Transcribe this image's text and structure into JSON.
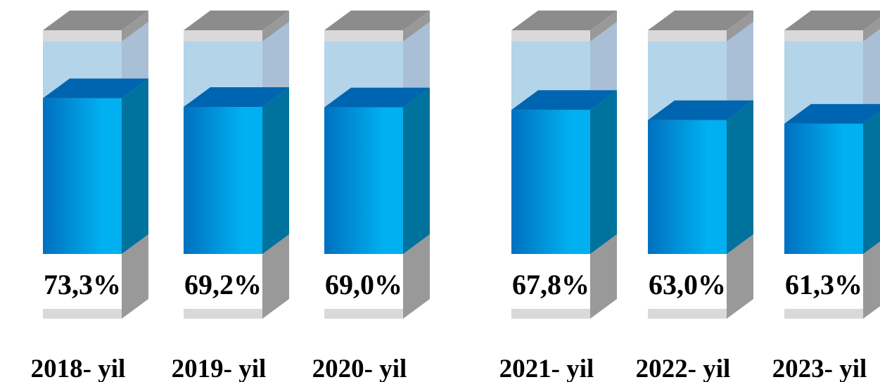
{
  "chart_data": {
    "type": "bar",
    "style": "3d-cylinder-column",
    "categories": [
      "2018- yil",
      "2019- yil",
      "2020- yil",
      "2021- yil",
      "2022- yil",
      "2023- yil"
    ],
    "values": [
      73.3,
      69.2,
      69.0,
      67.8,
      63.0,
      61.3
    ],
    "value_labels": [
      "73,3%",
      "69,2%",
      "69,0%",
      "67,8%",
      "63,0%",
      "61,3%"
    ],
    "unit": "%",
    "ylim": [
      0,
      100
    ],
    "grid": false,
    "legend": "none",
    "colors": {
      "fill_front_dark": "#0070C0",
      "fill_front_light": "#00B0F0",
      "fill_side": "#00729E",
      "fill_top": "#0065B0",
      "glass_front": "#B4D4EA",
      "glass_side": "#A9BFD5",
      "frame_light": "#D9D9D9",
      "frame_side": "#999999",
      "frame_top": "#8C8C8C"
    }
  }
}
